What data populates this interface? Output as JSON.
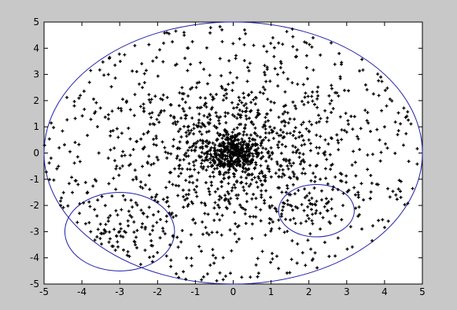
{
  "chart_data": {
    "type": "scatter",
    "title": "",
    "xlabel": "",
    "ylabel": "",
    "xlim": [
      -5,
      5
    ],
    "ylim": [
      -5,
      5
    ],
    "grid": false,
    "xticks": [
      "-5",
      "-4",
      "-3",
      "-2",
      "-1",
      "0",
      "1",
      "2",
      "3",
      "4",
      "5"
    ],
    "yticks": [
      "5",
      "4",
      "3",
      "2",
      "1",
      "0",
      "-1",
      "-2",
      "-3",
      "-4",
      "-5"
    ],
    "marker_color": "#000000",
    "ellipse_color": "#1f1faa",
    "ellipses": [
      {
        "cx": 0,
        "cy": 0,
        "rx": 5,
        "ry": 5
      },
      {
        "cx": -3,
        "cy": -3,
        "rx": 1.45,
        "ry": 1.5
      },
      {
        "cx": 2.2,
        "cy": -2.2,
        "rx": 1,
        "ry": 1
      }
    ],
    "series": [
      {
        "cluster_note": "dense cloud of roughly 1500 points spread over the large ellipse, concentrated near the origin",
        "points": [
          [
            0.05,
            0.02
          ],
          [
            0.1,
            -0.08
          ],
          [
            -0.12,
            0.05
          ],
          [
            0.2,
            0.15
          ],
          [
            -0.2,
            -0.1
          ],
          [
            0.03,
            0.25
          ],
          [
            -0.05,
            -0.3
          ],
          [
            0.3,
            -0.05
          ],
          [
            -0.32,
            0.12
          ],
          [
            0.15,
            -0.22
          ],
          [
            0.4,
            0.3
          ],
          [
            -0.4,
            -0.25
          ],
          [
            0.25,
            0.45
          ],
          [
            -0.28,
            0.4
          ],
          [
            0.5,
            -0.3
          ],
          [
            -0.5,
            0.2
          ],
          [
            0.6,
            0.1
          ],
          [
            -0.6,
            -0.05
          ],
          [
            0.1,
            0.65
          ],
          [
            -0.1,
            -0.62
          ],
          [
            0.8,
            0.5
          ],
          [
            -0.8,
            -0.6
          ],
          [
            0.75,
            -0.7
          ],
          [
            -0.7,
            0.8
          ],
          [
            1.0,
            0.2
          ],
          [
            -1.1,
            0.1
          ],
          [
            0.2,
            1.1
          ],
          [
            -0.3,
            -1.1
          ],
          [
            1.2,
            -0.9
          ],
          [
            -1.2,
            1.0
          ],
          [
            1.5,
            1.3
          ],
          [
            -1.6,
            -1.2
          ],
          [
            1.4,
            -1.5
          ],
          [
            -1.3,
            1.6
          ],
          [
            2.0,
            0.5
          ],
          [
            -2.1,
            -0.4
          ],
          [
            0.4,
            2.2
          ],
          [
            -0.5,
            -2.1
          ],
          [
            2.3,
            -1.0
          ],
          [
            -2.2,
            1.1
          ],
          [
            2.6,
            2.0
          ],
          [
            -2.7,
            -1.8
          ],
          [
            2.5,
            -2.2
          ],
          [
            -2.4,
            2.5
          ],
          [
            3.0,
            0.8
          ],
          [
            -3.1,
            -0.6
          ],
          [
            0.9,
            3.2
          ],
          [
            -0.8,
            -3.1
          ],
          [
            3.3,
            -1.5
          ],
          [
            -3.2,
            1.6
          ],
          [
            3.5,
            2.6
          ],
          [
            -3.6,
            -2.4
          ],
          [
            3.4,
            -2.9
          ],
          [
            -3.3,
            3.0
          ],
          [
            4.0,
            1.0
          ],
          [
            -4.1,
            -1.2
          ],
          [
            1.2,
            4.2
          ],
          [
            -1.1,
            -4.3
          ],
          [
            4.3,
            -1.6
          ],
          [
            -4.2,
            1.8
          ],
          [
            4.5,
            0.3
          ],
          [
            -4.6,
            0.2
          ],
          [
            0.3,
            4.7
          ],
          [
            -0.2,
            -4.7
          ],
          [
            2.8,
            3.8
          ],
          [
            -2.9,
            -3.7
          ],
          [
            3.9,
            2.9
          ],
          [
            -3.8,
            2.7
          ],
          [
            4.1,
            -2.6
          ],
          [
            -2.6,
            4.1
          ],
          [
            -3.0,
            -3.0
          ],
          [
            -3.3,
            -2.6
          ],
          [
            -2.6,
            -3.4
          ],
          [
            -3.6,
            -3.2
          ],
          [
            -2.4,
            -2.7
          ],
          [
            -3.4,
            -3.8
          ],
          [
            -2.2,
            -3.1
          ],
          [
            -3.9,
            -2.7
          ],
          [
            -2.8,
            -3.9
          ],
          [
            -3.1,
            -2.2
          ],
          [
            2.2,
            -2.2
          ],
          [
            2.0,
            -2.5
          ],
          [
            2.5,
            -1.9
          ],
          [
            1.7,
            -2.1
          ],
          [
            2.7,
            -2.4
          ],
          [
            2.3,
            -2.9
          ],
          [
            1.9,
            -1.7
          ],
          [
            2.9,
            -2.0
          ],
          [
            2.1,
            -2.7
          ],
          [
            1.6,
            -2.5
          ],
          [
            0.0,
            0.45
          ],
          [
            0.45,
            0.0
          ],
          [
            -0.45,
            0.0
          ],
          [
            0.0,
            -0.45
          ],
          [
            0.35,
            0.35
          ],
          [
            -0.35,
            0.35
          ],
          [
            0.35,
            -0.35
          ],
          [
            -0.35,
            -0.35
          ],
          [
            0.15,
            0.1
          ],
          [
            -0.15,
            -0.12
          ]
        ]
      }
    ]
  }
}
